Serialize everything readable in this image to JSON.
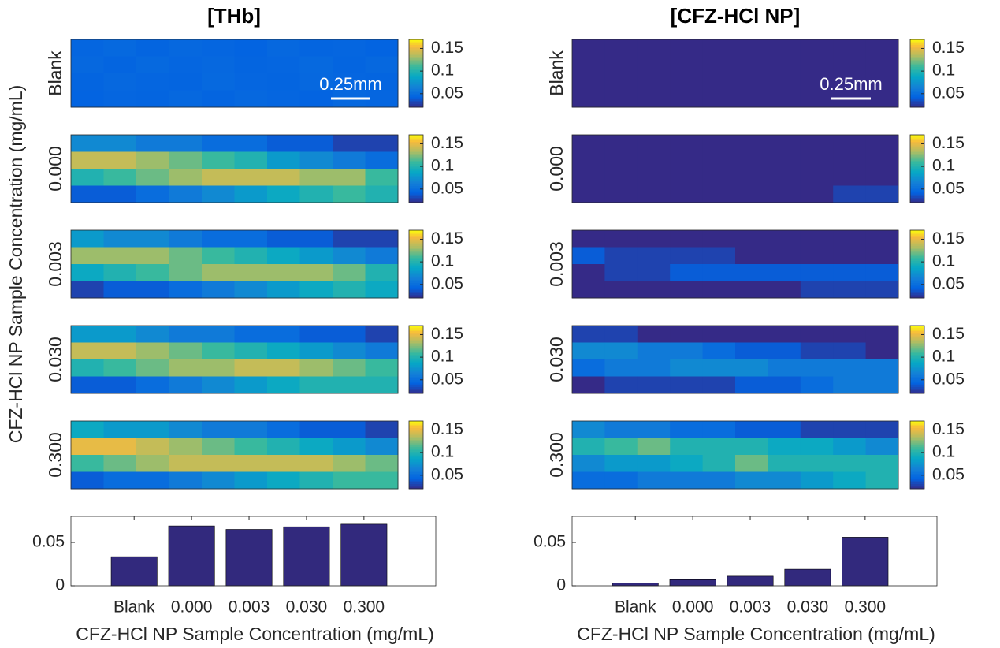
{
  "ylabel": "CFZ-HCl NP Sample Concentration (mg/mL)",
  "chart_data": [
    {
      "type": "heatmap",
      "title": "[THb]",
      "row_label": "Blank",
      "scale_bar": "0.25mm",
      "zlim": [
        0.02,
        0.17
      ],
      "colorbar_ticks": [
        0.05,
        0.1,
        0.15
      ],
      "values": [
        [
          0.045,
          0.047,
          0.044,
          0.046,
          0.045,
          0.043,
          0.046,
          0.044,
          0.045,
          0.043
        ],
        [
          0.046,
          0.044,
          0.047,
          0.045,
          0.046,
          0.044,
          0.045,
          0.047,
          0.044,
          0.046
        ],
        [
          0.044,
          0.046,
          0.045,
          0.044,
          0.047,
          0.045,
          0.044,
          0.046,
          0.045,
          0.044
        ],
        [
          0.043,
          0.045,
          0.044,
          0.046,
          0.044,
          0.046,
          0.045,
          0.043,
          0.046,
          0.045
        ]
      ]
    },
    {
      "type": "heatmap",
      "row_label": "0.000",
      "zlim": [
        0.02,
        0.17
      ],
      "colorbar_ticks": [
        0.05,
        0.1,
        0.15
      ],
      "values": [
        [
          0.07,
          0.07,
          0.06,
          0.06,
          0.05,
          0.05,
          0.04,
          0.04,
          0.03,
          0.03
        ],
        [
          0.14,
          0.14,
          0.13,
          0.12,
          0.11,
          0.1,
          0.08,
          0.07,
          0.06,
          0.05
        ],
        [
          0.1,
          0.11,
          0.12,
          0.13,
          0.14,
          0.14,
          0.14,
          0.13,
          0.13,
          0.11
        ],
        [
          0.04,
          0.04,
          0.05,
          0.06,
          0.07,
          0.08,
          0.09,
          0.1,
          0.11,
          0.1
        ]
      ]
    },
    {
      "type": "heatmap",
      "row_label": "0.003",
      "zlim": [
        0.02,
        0.17
      ],
      "colorbar_ticks": [
        0.05,
        0.1,
        0.15
      ],
      "values": [
        [
          0.08,
          0.07,
          0.07,
          0.06,
          0.05,
          0.05,
          0.04,
          0.04,
          0.03,
          0.03
        ],
        [
          0.13,
          0.13,
          0.13,
          0.12,
          0.11,
          0.1,
          0.09,
          0.08,
          0.07,
          0.06
        ],
        [
          0.09,
          0.1,
          0.11,
          0.12,
          0.13,
          0.13,
          0.13,
          0.13,
          0.12,
          0.1
        ],
        [
          0.03,
          0.04,
          0.04,
          0.05,
          0.06,
          0.07,
          0.08,
          0.09,
          0.1,
          0.09
        ]
      ]
    },
    {
      "type": "heatmap",
      "row_label": "0.030",
      "zlim": [
        0.02,
        0.17
      ],
      "colorbar_ticks": [
        0.05,
        0.1,
        0.15
      ],
      "values": [
        [
          0.08,
          0.08,
          0.07,
          0.06,
          0.06,
          0.05,
          0.05,
          0.04,
          0.04,
          0.03
        ],
        [
          0.14,
          0.14,
          0.13,
          0.12,
          0.11,
          0.1,
          0.09,
          0.08,
          0.07,
          0.06
        ],
        [
          0.1,
          0.11,
          0.12,
          0.13,
          0.13,
          0.14,
          0.14,
          0.13,
          0.12,
          0.11
        ],
        [
          0.04,
          0.04,
          0.05,
          0.06,
          0.07,
          0.08,
          0.09,
          0.1,
          0.1,
          0.1
        ]
      ]
    },
    {
      "type": "heatmap",
      "row_label": "0.300",
      "zlim": [
        0.02,
        0.17
      ],
      "colorbar_ticks": [
        0.05,
        0.1,
        0.15
      ],
      "values": [
        [
          0.09,
          0.08,
          0.08,
          0.07,
          0.06,
          0.06,
          0.05,
          0.04,
          0.04,
          0.03
        ],
        [
          0.15,
          0.15,
          0.14,
          0.13,
          0.12,
          0.11,
          0.1,
          0.09,
          0.08,
          0.07
        ],
        [
          0.11,
          0.12,
          0.13,
          0.14,
          0.14,
          0.14,
          0.14,
          0.14,
          0.13,
          0.12
        ],
        [
          0.04,
          0.05,
          0.05,
          0.06,
          0.07,
          0.08,
          0.09,
          0.1,
          0.11,
          0.11
        ]
      ]
    },
    {
      "type": "bar",
      "categories": [
        "Blank",
        "0.000",
        "0.003",
        "0.030",
        "0.300"
      ],
      "values": [
        0.0335,
        0.069,
        0.065,
        0.068,
        0.071
      ],
      "color": "#32297d",
      "ylim": [
        0,
        0.08
      ],
      "yticks": [
        0,
        0.05
      ],
      "xlabel": "CFZ-HCl NP Sample Concentration (mg/mL)"
    },
    {
      "type": "heatmap",
      "title": "[CFZ-HCl NP]",
      "row_label": "Blank",
      "scale_bar": "0.25mm",
      "zlim": [
        0.02,
        0.17
      ],
      "colorbar_ticks": [
        0.05,
        0.1,
        0.15
      ],
      "values": [
        [
          0.02,
          0.02,
          0.02,
          0.02,
          0.02,
          0.02,
          0.02,
          0.02,
          0.02,
          0.02
        ],
        [
          0.02,
          0.02,
          0.02,
          0.02,
          0.02,
          0.02,
          0.02,
          0.02,
          0.02,
          0.02
        ],
        [
          0.02,
          0.02,
          0.02,
          0.02,
          0.02,
          0.02,
          0.02,
          0.02,
          0.02,
          0.02
        ],
        [
          0.02,
          0.02,
          0.02,
          0.02,
          0.02,
          0.02,
          0.02,
          0.02,
          0.02,
          0.02
        ]
      ]
    },
    {
      "type": "heatmap",
      "row_label": "0.000",
      "zlim": [
        0.02,
        0.17
      ],
      "colorbar_ticks": [
        0.05,
        0.1,
        0.15
      ],
      "values": [
        [
          0.02,
          0.02,
          0.02,
          0.02,
          0.02,
          0.02,
          0.02,
          0.02,
          0.02,
          0.02
        ],
        [
          0.02,
          0.02,
          0.02,
          0.02,
          0.02,
          0.02,
          0.02,
          0.02,
          0.02,
          0.02
        ],
        [
          0.02,
          0.02,
          0.02,
          0.02,
          0.02,
          0.02,
          0.02,
          0.02,
          0.02,
          0.02
        ],
        [
          0.02,
          0.02,
          0.02,
          0.02,
          0.02,
          0.02,
          0.02,
          0.02,
          0.03,
          0.03
        ]
      ]
    },
    {
      "type": "heatmap",
      "row_label": "0.003",
      "zlim": [
        0.02,
        0.17
      ],
      "colorbar_ticks": [
        0.05,
        0.1,
        0.15
      ],
      "values": [
        [
          0.02,
          0.02,
          0.02,
          0.02,
          0.02,
          0.02,
          0.02,
          0.02,
          0.02,
          0.02
        ],
        [
          0.04,
          0.03,
          0.03,
          0.03,
          0.03,
          0.02,
          0.02,
          0.02,
          0.02,
          0.02
        ],
        [
          0.02,
          0.03,
          0.03,
          0.04,
          0.04,
          0.04,
          0.04,
          0.04,
          0.04,
          0.04
        ],
        [
          0.02,
          0.02,
          0.02,
          0.02,
          0.02,
          0.02,
          0.02,
          0.03,
          0.03,
          0.03
        ]
      ]
    },
    {
      "type": "heatmap",
      "row_label": "0.030",
      "zlim": [
        0.02,
        0.17
      ],
      "colorbar_ticks": [
        0.05,
        0.1,
        0.15
      ],
      "values": [
        [
          0.03,
          0.03,
          0.02,
          0.02,
          0.02,
          0.02,
          0.02,
          0.02,
          0.02,
          0.02
        ],
        [
          0.07,
          0.07,
          0.06,
          0.06,
          0.05,
          0.04,
          0.04,
          0.03,
          0.03,
          0.02
        ],
        [
          0.05,
          0.06,
          0.06,
          0.07,
          0.07,
          0.07,
          0.06,
          0.06,
          0.06,
          0.06
        ],
        [
          0.02,
          0.03,
          0.03,
          0.03,
          0.03,
          0.04,
          0.04,
          0.05,
          0.06,
          0.06
        ]
      ]
    },
    {
      "type": "heatmap",
      "row_label": "0.300",
      "zlim": [
        0.02,
        0.17
      ],
      "colorbar_ticks": [
        0.05,
        0.1,
        0.15
      ],
      "values": [
        [
          0.07,
          0.06,
          0.06,
          0.05,
          0.05,
          0.04,
          0.04,
          0.03,
          0.03,
          0.03
        ],
        [
          0.1,
          0.11,
          0.12,
          0.1,
          0.1,
          0.1,
          0.09,
          0.09,
          0.08,
          0.07
        ],
        [
          0.07,
          0.08,
          0.08,
          0.09,
          0.1,
          0.12,
          0.1,
          0.1,
          0.1,
          0.1
        ],
        [
          0.05,
          0.05,
          0.06,
          0.06,
          0.06,
          0.07,
          0.07,
          0.08,
          0.09,
          0.1
        ]
      ]
    },
    {
      "type": "bar",
      "categories": [
        "Blank",
        "0.000",
        "0.003",
        "0.030",
        "0.300"
      ],
      "values": [
        0.003,
        0.007,
        0.011,
        0.019,
        0.056
      ],
      "color": "#32297d",
      "ylim": [
        0,
        0.08
      ],
      "yticks": [
        0,
        0.05
      ],
      "xlabel": "CFZ-HCl NP Sample Concentration (mg/mL)"
    }
  ]
}
